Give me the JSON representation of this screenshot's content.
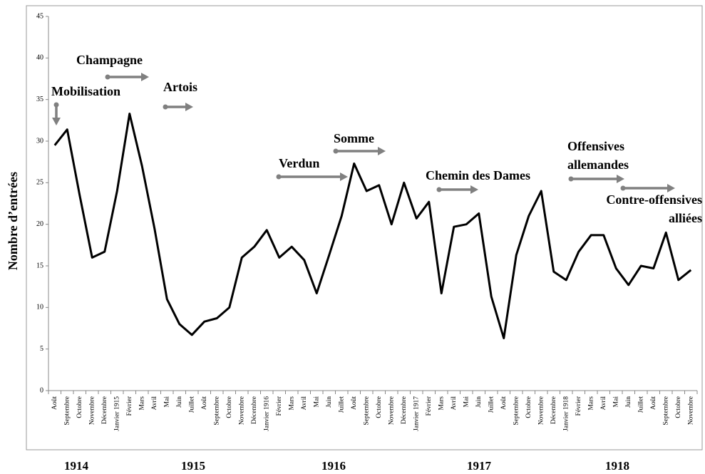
{
  "chart_data": {
    "type": "line",
    "y_label": "Nombre d’entrées",
    "categories": [
      "Août",
      "Septembre",
      "Octobre",
      "Novembre",
      "Décembre",
      "Janvier 1915",
      "Février",
      "Mars",
      "Avril",
      "Mai",
      "Juin",
      "Juillet",
      "Août",
      "Septembre",
      "Octobre",
      "Novembre",
      "Décembre",
      "Janvier 1916",
      "Février",
      "Mars",
      "Avril",
      "Mai",
      "Juin",
      "Juillet",
      "Août",
      "Septembre",
      "Octobre",
      "Novembre",
      "Décembre",
      "Janvier 1917",
      "Février",
      "Mars",
      "Avril",
      "Mai",
      "Juin",
      "Juillet",
      "Août",
      "Septembre",
      "Octobre",
      "Novembre",
      "Décembre",
      "Janvier 1918",
      "Février",
      "Mars",
      "Avril",
      "Mai",
      "Juin",
      "Juillet",
      "Août",
      "Septembre",
      "Octobre",
      "Novembre"
    ],
    "values": [
      29.5,
      31.4,
      23.5,
      16,
      16.7,
      24,
      33.3,
      27,
      19.5,
      11,
      8,
      6.7,
      8.3,
      8.7,
      10,
      16,
      17.3,
      19.3,
      16,
      17.3,
      15.7,
      11.7,
      16.3,
      21,
      27.3,
      24,
      24.7,
      20,
      25,
      20.7,
      22.7,
      11.7,
      19.7,
      20,
      21.3,
      11.3,
      6.3,
      16.3,
      21,
      24,
      14.3,
      13.3,
      16.7,
      18.7,
      18.7,
      14.7,
      12.7,
      15,
      14.7,
      19,
      13.3,
      14.5
    ],
    "color": "#000000",
    "ylim": [
      0,
      45
    ],
    "yticks": [
      0,
      5,
      10,
      15,
      20,
      25,
      30,
      35,
      40,
      45
    ],
    "year_labels": [
      "1914",
      "1915",
      "1916",
      "1917",
      "1918"
    ],
    "annotations": [
      {
        "lines": [
          "Mobilisation"
        ]
      },
      {
        "lines": [
          "Champagne"
        ]
      },
      {
        "lines": [
          "Artois"
        ]
      },
      {
        "lines": [
          "Verdun"
        ]
      },
      {
        "lines": [
          "Somme"
        ]
      },
      {
        "lines": [
          "Chemin des Dames"
        ]
      },
      {
        "lines": [
          "Offensives",
          "allemandes"
        ]
      },
      {
        "lines": [
          "Contre-offensives",
          "alliées"
        ]
      }
    ]
  }
}
